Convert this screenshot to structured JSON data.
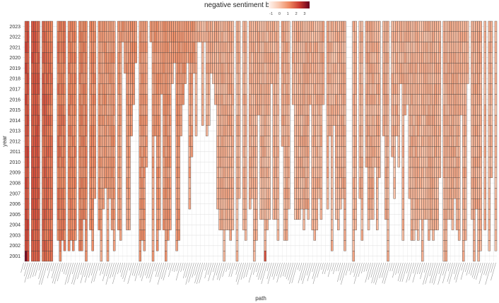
{
  "chart_data": {
    "type": "heatmap",
    "legend": {
      "title": "negative sentiment bar",
      "ticks": [
        "-1",
        "0",
        "1",
        "2",
        "3"
      ],
      "range": [
        -1.3,
        3.6
      ],
      "colors": [
        "#fff5f0",
        "#f9c8b0",
        "#ef8a62",
        "#cb3a30",
        "#67001f"
      ]
    },
    "ylabel": "year",
    "xlabel": "path",
    "years": [
      "2001",
      "2002",
      "2003",
      "2004",
      "2005",
      "2006",
      "2007",
      "2008",
      "2009",
      "2010",
      "2011",
      "2012",
      "2013",
      "2014",
      "2015",
      "2016",
      "2017",
      "2018",
      "2019",
      "2020",
      "2021",
      "2022",
      "2023"
    ],
    "path_count": 220,
    "missing_color": "#f7f7f7",
    "grid": true,
    "legend_position": "top"
  }
}
